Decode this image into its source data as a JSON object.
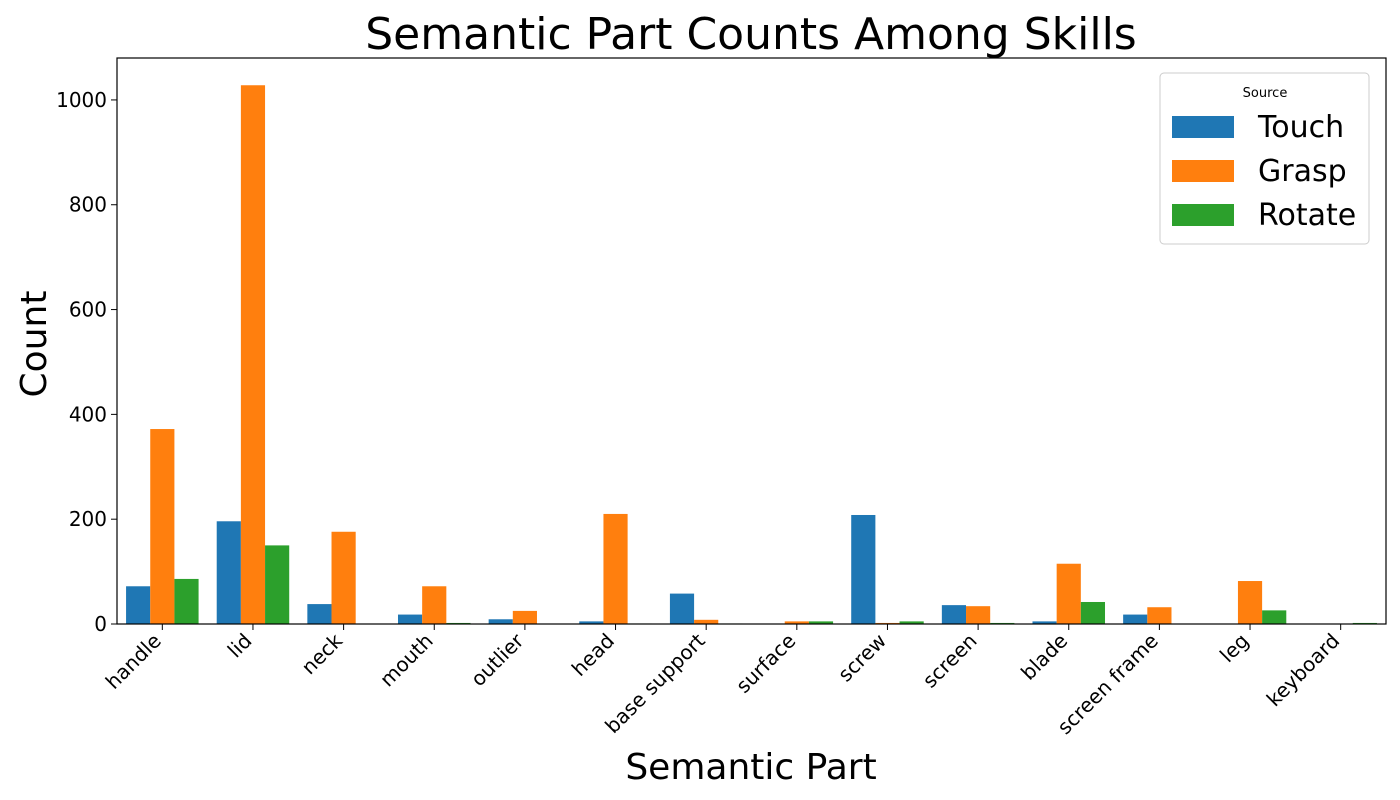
{
  "chart_data": {
    "type": "bar",
    "title": "Semantic Part Counts Among Skills",
    "xlabel": "Semantic Part",
    "ylabel": "Count",
    "categories": [
      "handle",
      "lid",
      "neck",
      "mouth",
      "outlier",
      "head",
      "base support",
      "surface",
      "screw",
      "screen",
      "blade",
      "screen frame",
      "leg",
      "keyboard"
    ],
    "series": [
      {
        "name": "Touch",
        "color": "#1f77b4",
        "values": [
          72,
          196,
          38,
          18,
          9,
          5,
          58,
          0,
          208,
          36,
          5,
          18,
          0,
          0
        ]
      },
      {
        "name": "Grasp",
        "color": "#ff7f0e",
        "values": [
          372,
          1028,
          176,
          72,
          25,
          210,
          8,
          5,
          2,
          34,
          115,
          32,
          82,
          0
        ]
      },
      {
        "name": "Rotate",
        "color": "#2ca02c",
        "values": [
          86,
          150,
          0,
          2,
          0,
          1,
          1,
          5,
          5,
          2,
          42,
          0,
          26,
          2
        ]
      }
    ],
    "ylim": [
      0,
      1080
    ],
    "yticks": [
      0,
      200,
      400,
      600,
      800,
      1000
    ],
    "grid": false,
    "legend": {
      "title": "Source",
      "position": "top-right"
    }
  }
}
